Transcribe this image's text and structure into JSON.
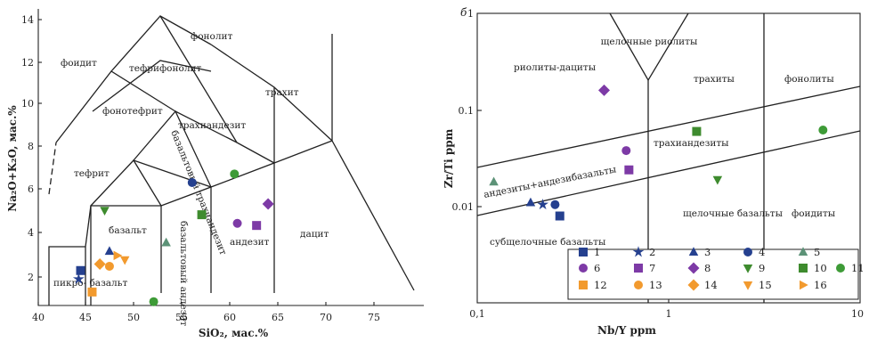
{
  "chart_data": [
    {
      "type": "scatter",
      "panel": "TAS",
      "xlabel": "SiO₂, мас.%",
      "ylabel": "Na₂O+K₂O, мас.%",
      "xlim": [
        40,
        76
      ],
      "ylim": [
        0.8,
        14.8
      ],
      "xticks": [
        "40",
        "45",
        "50",
        "55",
        "60",
        "65",
        "70",
        "75"
      ],
      "yticks": [
        "2",
        "4",
        "6",
        "8",
        "10",
        "12",
        "14"
      ],
      "field_labels": [
        "фоидит",
        "фонолит",
        "тефрифонолит",
        "фонотефрит",
        "трахит",
        "трахиандезит",
        "базальтовый трахиандезит",
        "тефрит",
        "базальт",
        "базальтовый андезит",
        "андезит",
        "дацит",
        "пикро- базальт"
      ],
      "points": [
        {
          "sym": 1,
          "x": 44.4,
          "y": 2.3
        },
        {
          "sym": 2,
          "x": 44.2,
          "y": 1.9
        },
        {
          "sym": 3,
          "x": 47.4,
          "y": 3.2
        },
        {
          "sym": 4,
          "x": 56.0,
          "y": 6.4
        },
        {
          "sym": 5,
          "x": 53.3,
          "y": 3.6
        },
        {
          "sym": 6,
          "x": 60.7,
          "y": 4.5
        },
        {
          "sym": 7,
          "x": 62.7,
          "y": 4.4
        },
        {
          "sym": 8,
          "x": 63.9,
          "y": 5.4
        },
        {
          "sym": 9,
          "x": 46.9,
          "y": 5.1
        },
        {
          "sym": 10,
          "x": 57.0,
          "y": 4.9
        },
        {
          "sym": 11,
          "x": 60.4,
          "y": 6.8
        },
        {
          "sym": 11,
          "x": 52.0,
          "y": 0.85
        },
        {
          "sym": 12,
          "x": 45.6,
          "y": 1.3
        },
        {
          "sym": 13,
          "x": 47.4,
          "y": 2.5
        },
        {
          "sym": 14,
          "x": 46.4,
          "y": 2.6
        },
        {
          "sym": 15,
          "x": 49.0,
          "y": 2.8
        },
        {
          "sym": 16,
          "x": 48.2,
          "y": 3.0
        }
      ]
    },
    {
      "type": "scatter",
      "panel": "б",
      "xlabel": "Nb/Y ppm",
      "ylabel": "Zr/Ti ppm",
      "xscale": "log",
      "yscale": "log",
      "xlim": [
        0.1,
        10
      ],
      "ylim": [
        0.001,
        1
      ],
      "xticks": [
        "0,1",
        "1",
        "10"
      ],
      "yticks": [
        "0.01",
        "0.1",
        "1"
      ],
      "field_labels": [
        "щелочные риолиты",
        "риолиты-дациты",
        "трахиты",
        "фонолиты",
        "трахиандезиты",
        "андезиты+андезибазальты",
        "щелочные базальты",
        "фоидиты",
        "субщелочные базальты"
      ],
      "points": [
        {
          "sym": 1,
          "x": 0.27,
          "y": 0.008
        },
        {
          "sym": 2,
          "x": 0.22,
          "y": 0.0105
        },
        {
          "sym": 3,
          "x": 0.19,
          "y": 0.011
        },
        {
          "sym": 4,
          "x": 0.255,
          "y": 0.0105
        },
        {
          "sym": 5,
          "x": 0.122,
          "y": 0.018
        },
        {
          "sym": 6,
          "x": 0.6,
          "y": 0.038
        },
        {
          "sym": 7,
          "x": 0.62,
          "y": 0.024
        },
        {
          "sym": 8,
          "x": 0.46,
          "y": 0.16
        },
        {
          "sym": 9,
          "x": 1.8,
          "y": 0.019
        },
        {
          "sym": 10,
          "x": 1.4,
          "y": 0.06
        },
        {
          "sym": 11,
          "x": 6.4,
          "y": 0.062
        }
      ],
      "legend": [
        "1",
        "2",
        "3",
        "4",
        "5",
        "6",
        "7",
        "8",
        "9",
        "10",
        "11",
        "12",
        "13",
        "14",
        "15",
        "16"
      ]
    }
  ],
  "symbols": {
    "1": {
      "shape": "square",
      "color": "#25408f"
    },
    "2": {
      "shape": "star",
      "color": "#25408f"
    },
    "3": {
      "shape": "triangle",
      "color": "#25408f"
    },
    "4": {
      "shape": "circle",
      "color": "#25408f"
    },
    "5": {
      "shape": "triangle",
      "color": "#5c9277"
    },
    "6": {
      "shape": "circle",
      "color": "#7d3aa6"
    },
    "7": {
      "shape": "square",
      "color": "#7d3aa6"
    },
    "8": {
      "shape": "diamond",
      "color": "#7d3aa6"
    },
    "9": {
      "shape": "triangle-down",
      "color": "#3e8b2e"
    },
    "10": {
      "shape": "square",
      "color": "#3e8b2e"
    },
    "11": {
      "shape": "circle",
      "color": "#3e9b37"
    },
    "12": {
      "shape": "square",
      "color": "#f29a2e"
    },
    "13": {
      "shape": "circle",
      "color": "#f29a2e"
    },
    "14": {
      "shape": "diamond",
      "color": "#f29a2e"
    },
    "15": {
      "shape": "triangle-down",
      "color": "#f29a2e"
    },
    "16": {
      "shape": "triangle-right",
      "color": "#f29a2e"
    }
  }
}
